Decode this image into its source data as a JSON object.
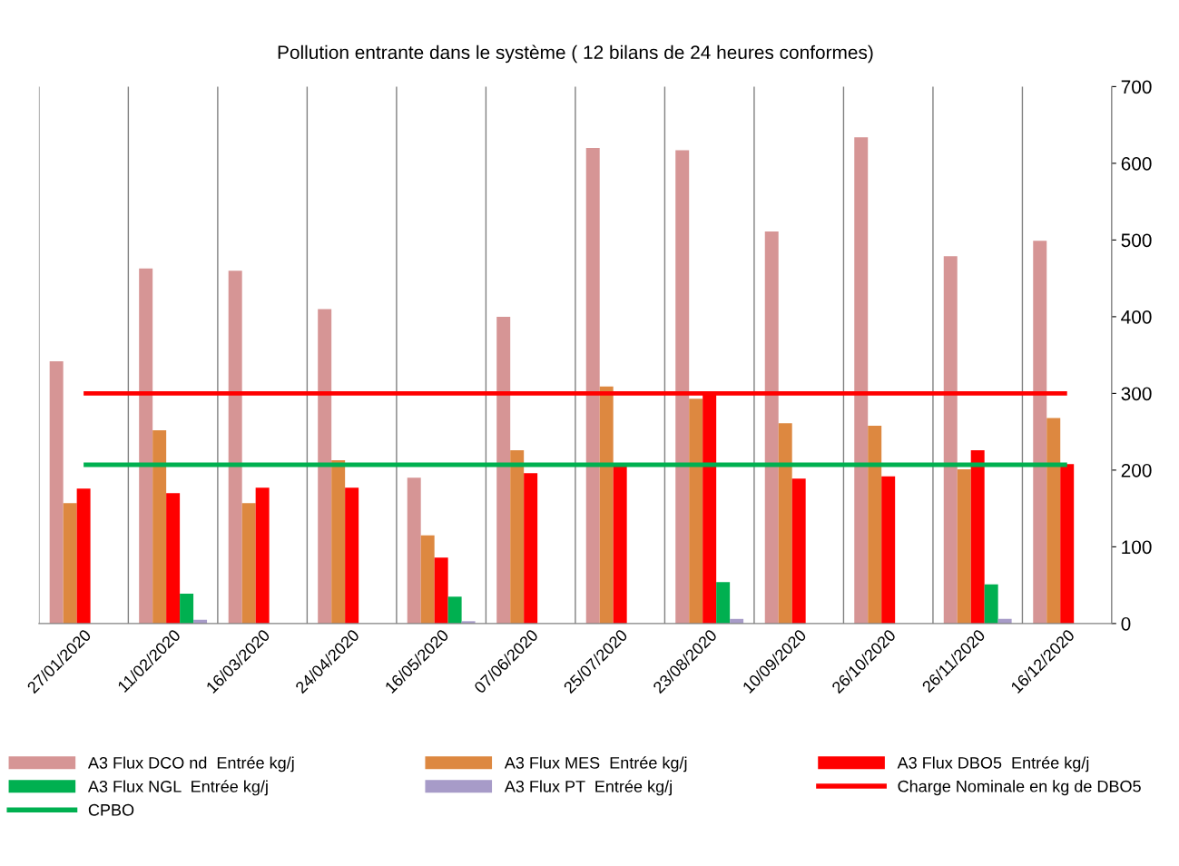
{
  "chart_data": {
    "type": "bar",
    "title": "Pollution entrante dans le système ( 12 bilans de 24 heures conformes)",
    "categories": [
      "27/01/2020",
      "11/02/2020",
      "16/03/2020",
      "24/04/2020",
      "16/05/2020",
      "07/06/2020",
      "25/07/2020",
      "23/08/2020",
      "10/09/2020",
      "26/10/2020",
      "26/11/2020",
      "16/12/2020"
    ],
    "series": [
      {
        "name": "A3 Flux DCO nd  Entrée kg/j",
        "color": "#d69595",
        "values": [
          342,
          463,
          460,
          410,
          190,
          400,
          620,
          617,
          511,
          634,
          479,
          499
        ]
      },
      {
        "name": "A3 Flux MES  Entrée kg/j",
        "color": "#dd8840",
        "values": [
          157,
          252,
          157,
          213,
          115,
          226,
          309,
          293,
          261,
          258,
          201,
          268
        ]
      },
      {
        "name": "A3 Flux DBO5  Entrée kg/j",
        "color": "#ff0000",
        "values": [
          176,
          170,
          177,
          177,
          86,
          196,
          205,
          302,
          189,
          192,
          226,
          208
        ]
      },
      {
        "name": "A3 Flux NGL  Entrée kg/j",
        "color": "#00b050",
        "values": [
          null,
          39,
          null,
          null,
          35,
          null,
          null,
          54,
          null,
          null,
          51,
          null
        ]
      },
      {
        "name": "A3 Flux PT  Entrée kg/j",
        "color": "#a79bc8",
        "values": [
          null,
          5,
          null,
          null,
          3,
          null,
          null,
          6,
          null,
          null,
          6,
          null
        ]
      },
      {
        "name": "Charge Nominale en kg de DBO5",
        "type": "line",
        "color": "#ff0000",
        "values": [
          300,
          300,
          300,
          300,
          300,
          300,
          300,
          300,
          300,
          300,
          300,
          300
        ]
      },
      {
        "name": "CPBO",
        "type": "line",
        "color": "#00b050",
        "values": [
          207,
          207,
          207,
          207,
          207,
          207,
          207,
          207,
          207,
          207,
          207,
          207
        ]
      }
    ],
    "ylim": [
      0,
      700
    ],
    "yticks": [
      0,
      100,
      200,
      300,
      400,
      500,
      600,
      700
    ],
    "grid": "x",
    "legend": "bottom",
    "marker": "none",
    "line_style": "solid"
  }
}
